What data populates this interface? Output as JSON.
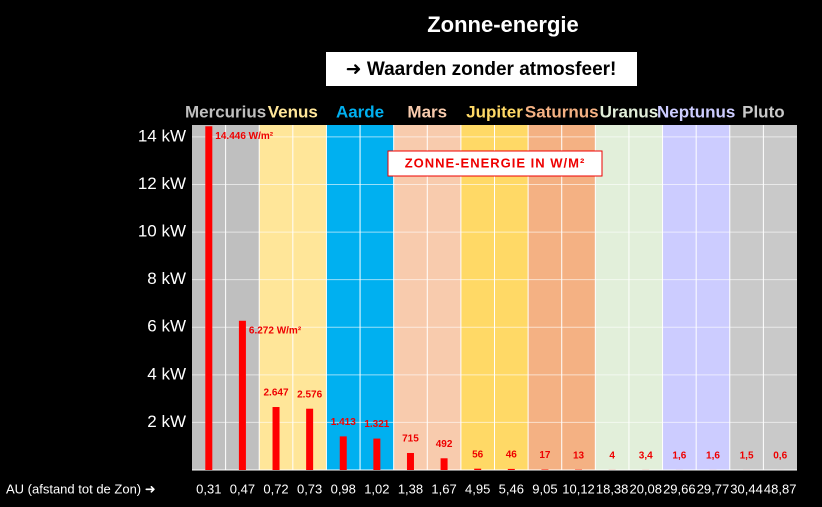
{
  "chart_data": {
    "type": "bar",
    "title": "Zonne-energie",
    "subtitle": "➜ Waarden zonder atmosfeer!",
    "annotation": "ZONNE-ENERGIE IN W/M²",
    "xlabel": "AU (afstand tot de Zon) ➜",
    "categories": [
      "0,31",
      "0,47",
      "0,72",
      "0,73",
      "0,98",
      "1,02",
      "1,38",
      "1,67",
      "4,95",
      "5,46",
      "9,05",
      "10,12",
      "18,38",
      "20,08",
      "29,66",
      "29,77",
      "30,44",
      "48,87"
    ],
    "values": [
      14446,
      6272,
      2647,
      2576,
      1413,
      1321,
      715,
      492,
      56,
      46,
      17,
      13,
      4,
      3.4,
      1.6,
      1.6,
      1.5,
      0.6
    ],
    "value_labels": [
      "14.446 W/m²",
      "6.272 W/m²",
      "2.647",
      "2.576",
      "1.413",
      "1.321",
      "715",
      "492",
      "56",
      "46",
      "17",
      "13",
      "4",
      "3,4",
      "1,6",
      "1,6",
      "1,5",
      "0,6"
    ],
    "color": "#ff0000",
    "bands": [
      {
        "name": "Mercurius",
        "color": "#bfbfbf"
      },
      {
        "name": "Venus",
        "color": "#ffe699"
      },
      {
        "name": "Aarde",
        "color": "#00b0f0"
      },
      {
        "name": "Mars",
        "color": "#f8cbad"
      },
      {
        "name": "Jupiter",
        "color": "#ffd966"
      },
      {
        "name": "Saturnus",
        "color": "#f4b183"
      },
      {
        "name": "Uranus",
        "color": "#e2efda"
      },
      {
        "name": "Neptunus",
        "color": "#ccccff"
      },
      {
        "name": "Pluto",
        "color": "#c9c9c9"
      }
    ],
    "ylim": [
      0,
      14500
    ],
    "yticks": [
      {
        "value": 2000,
        "label": "2 kW"
      },
      {
        "value": 4000,
        "label": "4 kW"
      },
      {
        "value": 6000,
        "label": "6 kW"
      },
      {
        "value": 8000,
        "label": "8 kW"
      },
      {
        "value": 10000,
        "label": "10 kW"
      },
      {
        "value": 12000,
        "label": "12 kW"
      },
      {
        "value": 14000,
        "label": "14 kW"
      }
    ],
    "grid": true
  }
}
